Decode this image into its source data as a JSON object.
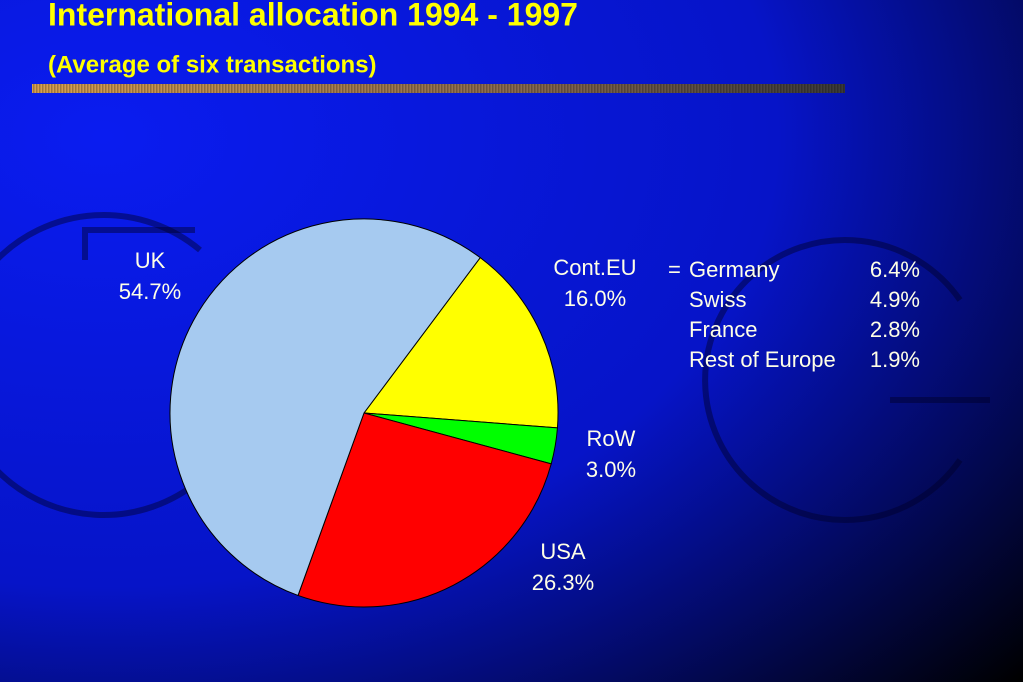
{
  "chart_data": {
    "type": "pie",
    "title": "International allocation 1994 - 1997",
    "subtitle": "(Average of six transactions)",
    "categories": [
      "Cont.EU",
      "RoW",
      "USA",
      "UK"
    ],
    "values": [
      16.0,
      3.0,
      26.3,
      54.7
    ],
    "value_labels": [
      "16.0%",
      "3.0%",
      "26.3%",
      "54.7%"
    ],
    "colors": [
      "#ffff00",
      "#00ff00",
      "#ff0000",
      "#a6caf0"
    ],
    "breakdown_prefix": "=",
    "breakdown": [
      {
        "label": "Germany",
        "value": 6.4,
        "value_label": "6.4%"
      },
      {
        "label": "Swiss",
        "value": 4.9,
        "value_label": "4.9%"
      },
      {
        "label": "France",
        "value": 2.8,
        "value_label": "2.8%"
      },
      {
        "label": "Rest of Europe",
        "value": 1.9,
        "value_label": "1.9%"
      }
    ]
  }
}
